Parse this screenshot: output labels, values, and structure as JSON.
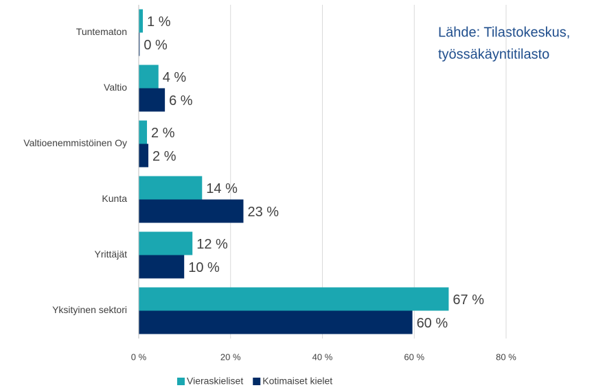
{
  "chart_data": {
    "type": "bar",
    "orientation": "horizontal",
    "categories": [
      "Tuntematon",
      "Valtio",
      "Valtioenemmistöinen Oy",
      "Kunta",
      "Yrittäjät",
      "Yksityinen sektori"
    ],
    "series": [
      {
        "name": "Vieraskieliset",
        "color": "#1ba7b1",
        "values": [
          0.9,
          4.3,
          1.8,
          13.8,
          11.7,
          67.5
        ],
        "value_labels": [
          "1 %",
          "4 %",
          "2 %",
          "14 %",
          "12 %",
          "67 %"
        ]
      },
      {
        "name": "Kotimaiset kielet",
        "color": "#002b66",
        "values": [
          0.2,
          5.7,
          2.1,
          22.8,
          9.9,
          59.6
        ],
        "value_labels": [
          "0 %",
          "6 %",
          "2 %",
          "23 %",
          "10 %",
          "60 %"
        ]
      }
    ],
    "xlim": [
      0,
      80
    ],
    "xticks": [
      {
        "value": 0,
        "label": "0 %"
      },
      {
        "value": 20,
        "label": "20 %"
      },
      {
        "value": 40,
        "label": "40 %"
      },
      {
        "value": 60,
        "label": "60 %"
      },
      {
        "value": 80,
        "label": "80 %"
      }
    ],
    "grid": true,
    "legend": "bottom",
    "annotation": [
      "Lähde: Tilastokeskus,",
      "työssäkäyntitilasto"
    ]
  }
}
